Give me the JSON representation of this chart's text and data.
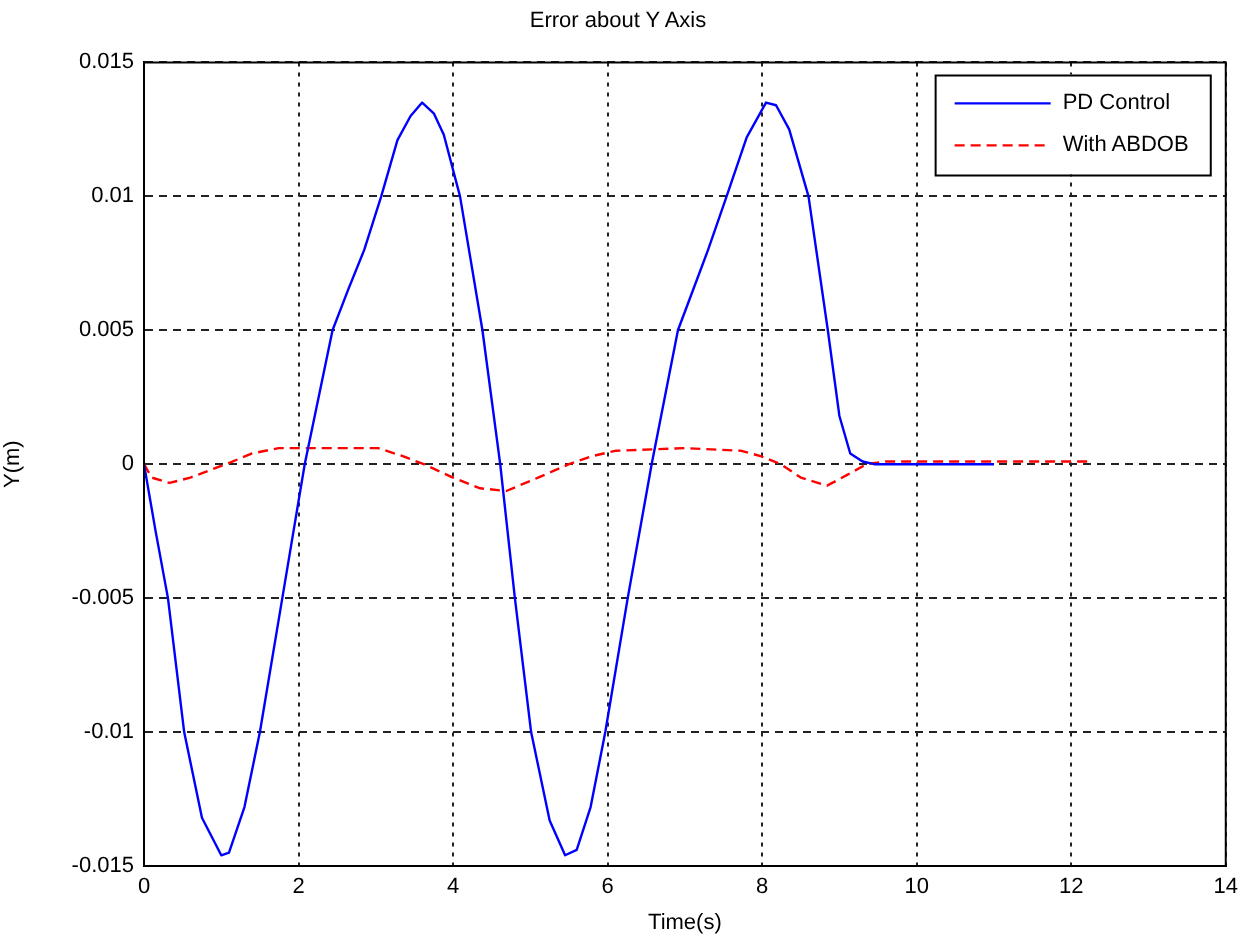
{
  "chart_data": {
    "type": "line",
    "title": "Error about Y Axis",
    "xlabel": "Time(s)",
    "ylabel": "Y(m)",
    "xlim": [
      0,
      14
    ],
    "xticks": [
      0,
      2,
      4,
      6,
      8,
      10,
      12,
      14
    ],
    "ylim": [
      -0.015,
      0.015
    ],
    "yticks": [
      -0.015,
      -0.01,
      -0.005,
      0,
      0.005,
      0.01,
      0.015
    ],
    "grid": true,
    "legend": "top right",
    "series": [
      {
        "name": "PD Control",
        "color": "#0000ff",
        "line_style": "solid",
        "x": [
          0,
          0.15,
          0.31,
          0.52,
          0.75,
          1.0,
          1.1,
          1.3,
          1.5,
          1.79,
          2.08,
          2.44,
          2.64,
          2.85,
          3.07,
          3.28,
          3.45,
          3.6,
          3.75,
          3.88,
          4.09,
          4.38,
          4.61,
          4.8,
          5.01,
          5.25,
          5.45,
          5.6,
          5.78,
          5.97,
          6.26,
          6.57,
          6.91,
          7.04,
          7.3,
          7.54,
          7.8,
          8.05,
          8.18,
          8.35,
          8.6,
          8.85,
          9.0,
          9.14,
          9.3,
          9.45,
          11.0
        ],
        "values": [
          0,
          -0.0025,
          -0.005,
          -0.01,
          -0.0132,
          -0.0146,
          -0.0145,
          -0.0128,
          -0.01,
          -0.005,
          0,
          0.005,
          0.0065,
          0.008,
          0.01,
          0.0121,
          0.013,
          0.0135,
          0.0131,
          0.0123,
          0.01,
          0.005,
          0,
          -0.005,
          -0.01,
          -0.0133,
          -0.0146,
          -0.0144,
          -0.0128,
          -0.01,
          -0.005,
          0,
          0.005,
          0.006,
          0.008,
          0.01,
          0.0122,
          0.0135,
          0.0134,
          0.0125,
          0.01,
          0.005,
          0.0018,
          0.0004,
          0.0001,
          0,
          0
        ]
      },
      {
        "name": "With ABDOB",
        "color": "#ff0000",
        "line_style": "dashed",
        "x": [
          0,
          0.1,
          0.33,
          0.6,
          1.06,
          1.4,
          1.74,
          2.5,
          3.03,
          3.35,
          3.62,
          4.0,
          4.35,
          4.69,
          5.1,
          5.5,
          5.8,
          6.1,
          7.0,
          7.73,
          7.98,
          8.24,
          8.5,
          8.84,
          9.1,
          9.35,
          9.6,
          12.26
        ],
        "values": [
          0,
          -0.0005,
          -0.0007,
          -0.0005,
          0,
          0.0004,
          0.0006,
          0.0006,
          0.0006,
          0.0003,
          0,
          -0.0005,
          -0.0009,
          -0.001,
          -0.0005,
          0,
          0.0003,
          0.0005,
          0.0006,
          0.0005,
          0.0003,
          0,
          -0.0005,
          -0.0008,
          -0.0004,
          0,
          0.0001,
          0.0001
        ]
      }
    ]
  }
}
